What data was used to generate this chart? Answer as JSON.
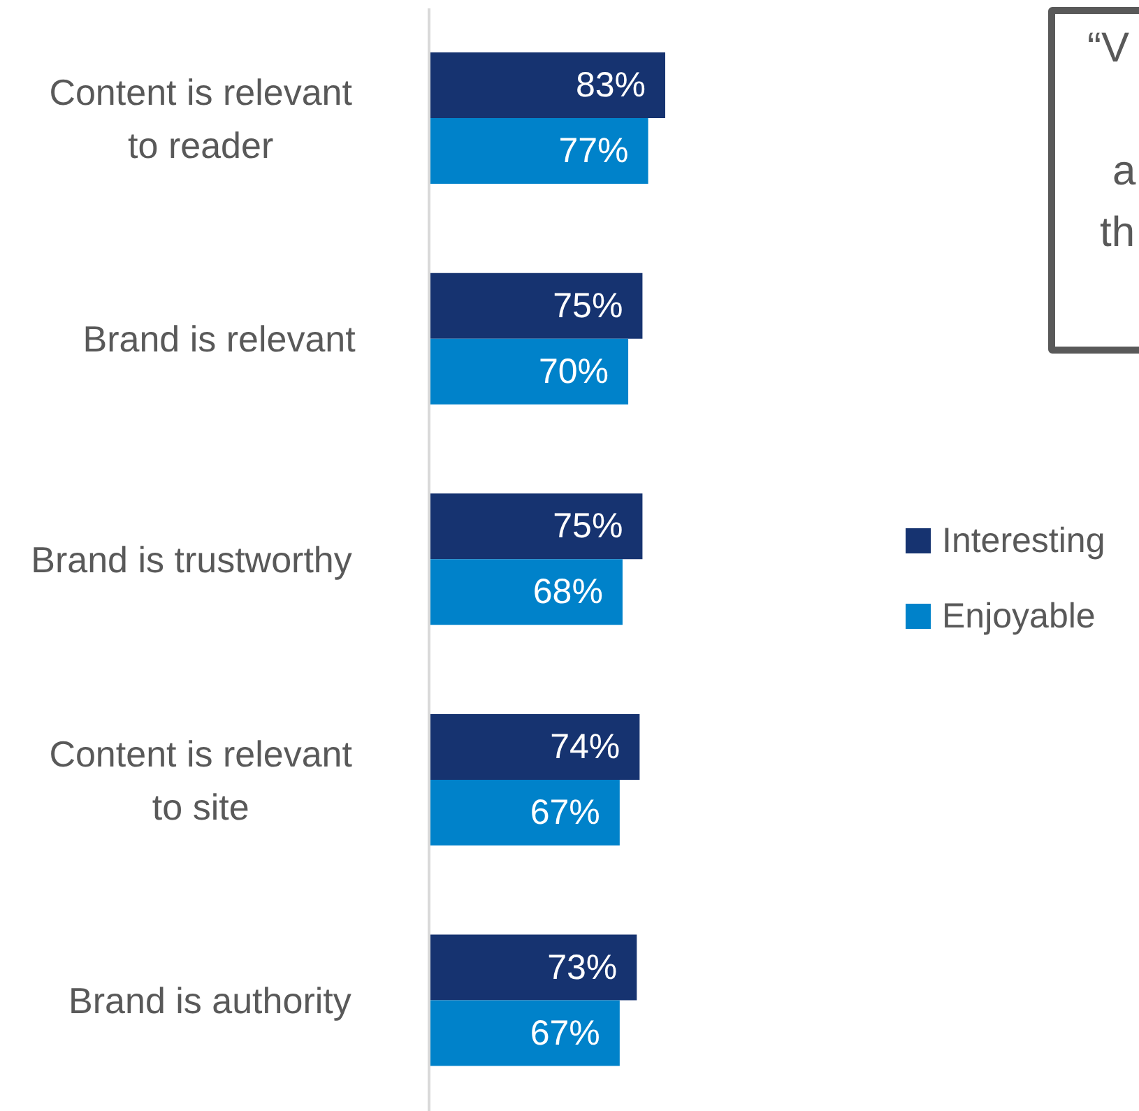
{
  "chart_data": {
    "type": "bar",
    "orientation": "horizontal",
    "categories": [
      "Content is relevant to reader",
      "Brand is relevant",
      "Brand is trustworthy",
      "Content is relevant to site",
      "Brand is authority"
    ],
    "series": [
      {
        "name": "Interesting",
        "color": "#163370",
        "values": [
          83,
          75,
          75,
          74,
          73
        ],
        "value_labels": [
          "83%",
          "75%",
          "75%",
          "74%",
          "73%"
        ]
      },
      {
        "name": "Enjoyable",
        "color": "#0082ca",
        "values": [
          77,
          70,
          68,
          67,
          67
        ],
        "value_labels": [
          "77%",
          "70%",
          "68%",
          "67%",
          "67%"
        ]
      }
    ],
    "tick_labels": "y",
    "legend": "right",
    "annotations": [
      "“V",
      "a",
      "th"
    ]
  }
}
